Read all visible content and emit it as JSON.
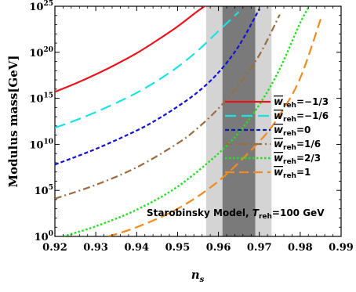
{
  "chart_data": {
    "type": "line",
    "title": "",
    "xlabel": "n",
    "xlabel_sub": "s",
    "ylabel": "Modulus mass[GeV]",
    "xlim": [
      0.92,
      0.99
    ],
    "ylim_log10": [
      0,
      25
    ],
    "y_scale": "log",
    "x_ticks": [
      "0.92",
      "0.93",
      "0.94",
      "0.95",
      "0.96",
      "0.97",
      "0.98",
      "0.99"
    ],
    "y_ticks": [
      {
        "exp": 0,
        "base": "10",
        "sup": "0"
      },
      {
        "exp": 5,
        "base": "10",
        "sup": "5"
      },
      {
        "exp": 10,
        "base": "10",
        "sup": "10"
      },
      {
        "exp": 15,
        "base": "10",
        "sup": "15"
      },
      {
        "exp": 20,
        "base": "10",
        "sup": "20"
      },
      {
        "exp": 25,
        "base": "10",
        "sup": "25"
      }
    ],
    "bands": [
      {
        "x0": 0.957,
        "x1": 0.973,
        "color": "#d4d4d4"
      },
      {
        "x0": 0.961,
        "x1": 0.969,
        "color": "#7a7a7a"
      }
    ],
    "series": [
      {
        "legend_value": "−1/3",
        "color": "#e8141b",
        "dash": "",
        "width": 2.2,
        "x": [
          0.92,
          0.925,
          0.93,
          0.935,
          0.94,
          0.945,
          0.95,
          0.955,
          0.958
        ],
        "y_log10": [
          15.7,
          16.6,
          17.6,
          18.7,
          19.9,
          21.3,
          22.8,
          24.5,
          25.4
        ]
      },
      {
        "legend_value": "−1/6",
        "color": "#19e3e3",
        "dash": "14,7",
        "width": 2.2,
        "x": [
          0.92,
          0.925,
          0.93,
          0.935,
          0.94,
          0.945,
          0.95,
          0.955,
          0.96,
          0.965
        ],
        "y_log10": [
          11.8,
          12.6,
          13.5,
          14.5,
          15.6,
          16.9,
          18.4,
          20.2,
          22.3,
          24.4
        ]
      },
      {
        "legend_value": "0",
        "color": "#1010d8",
        "dash": "5,3",
        "width": 2.2,
        "x": [
          0.92,
          0.93,
          0.94,
          0.945,
          0.95,
          0.955,
          0.96,
          0.965,
          0.97
        ],
        "y_log10": [
          7.8,
          9.5,
          11.5,
          12.7,
          14.1,
          15.7,
          17.8,
          20.7,
          24.7
        ]
      },
      {
        "legend_value": "1/6",
        "color": "#9c6b3e",
        "dash": "9,4,2,4",
        "width": 2.2,
        "x": [
          0.92,
          0.93,
          0.94,
          0.95,
          0.955,
          0.96,
          0.965,
          0.97,
          0.975
        ],
        "y_log10": [
          4.1,
          5.6,
          7.5,
          10.1,
          11.8,
          13.9,
          16.5,
          19.7,
          24.1
        ]
      },
      {
        "legend_value": "2/3",
        "color": "#1ee21e",
        "dash": "2.5,2.5",
        "width": 2.4,
        "x": [
          0.922,
          0.93,
          0.94,
          0.95,
          0.96,
          0.965,
          0.97,
          0.975,
          0.98,
          0.983
        ],
        "y_log10": [
          0.0,
          1.1,
          2.9,
          5.4,
          9.0,
          11.3,
          14.3,
          18.2,
          23.2,
          25.6
        ]
      },
      {
        "legend_value": "1",
        "color": "#f48a1c",
        "dash": "12,6",
        "width": 2.2,
        "x": [
          0.933,
          0.94,
          0.95,
          0.96,
          0.97,
          0.975,
          0.98,
          0.985
        ],
        "y_log10": [
          0.0,
          1.0,
          3.0,
          6.0,
          10.3,
          13.2,
          17.2,
          23.6
        ]
      }
    ],
    "legend": {
      "placement": "right",
      "label_base": "w",
      "label_sub": "reh",
      "equals": "="
    },
    "annotation": {
      "prefix": "Starobinsky Model, ",
      "var": "T",
      "var_sub": "reh",
      "suffix": "=100 GeV"
    }
  }
}
